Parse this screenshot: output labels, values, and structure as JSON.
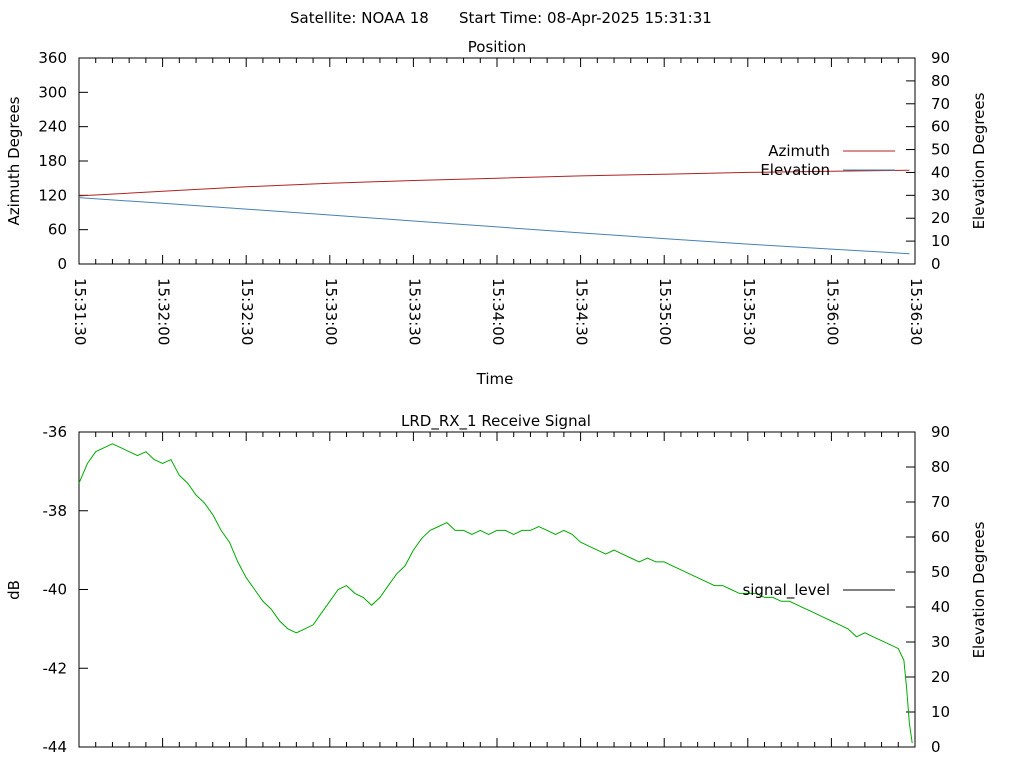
{
  "header": {
    "satellite": "Satellite: NOAA 18",
    "start_time": "Start Time: 08-Apr-2025 15:31:31"
  },
  "chart_data": [
    {
      "type": "line",
      "title": "Position",
      "xlabel": "Time",
      "ylabel": "Azimuth Degrees",
      "y2label": "Elevation Degrees",
      "x_ticks": [
        "15:31:30",
        "15:32:00",
        "15:32:30",
        "15:33:00",
        "15:33:30",
        "15:34:00",
        "15:34:30",
        "15:35:00",
        "15:35:30",
        "15:36:00",
        "15:36:30"
      ],
      "y_ticks": [
        "0",
        "60",
        "120",
        "180",
        "240",
        "300",
        "360"
      ],
      "y2_ticks": [
        "0",
        "10",
        "20",
        "30",
        "40",
        "50",
        "60",
        "70",
        "80",
        "90"
      ],
      "ylim": [
        0,
        360
      ],
      "y2lim": [
        0,
        90
      ],
      "xlim_seconds": [
        0,
        300
      ],
      "legend_position": "right",
      "grid": false,
      "series": [
        {
          "name": "Azimuth",
          "axis": "y1",
          "color": "#b22222",
          "x_seconds": [
            0,
            30,
            60,
            90,
            120,
            150,
            180,
            210,
            240,
            270,
            298
          ],
          "values": [
            119,
            127,
            135,
            141,
            146,
            150,
            154,
            157,
            160,
            162,
            164
          ]
        },
        {
          "name": "Elevation",
          "axis": "y2",
          "color": "#4682b4",
          "x_seconds": [
            0,
            30,
            60,
            90,
            120,
            150,
            180,
            210,
            240,
            270,
            298
          ],
          "values": [
            29,
            26.5,
            24,
            21.4,
            18.8,
            16.2,
            13.6,
            11.1,
            8.7,
            6.5,
            4.5
          ]
        }
      ]
    },
    {
      "type": "line",
      "title": "LRD_RX_1 Receive Signal",
      "ylabel": "dB",
      "y2label": "Elevation Degrees",
      "y_ticks": [
        "-44",
        "-42",
        "-40",
        "-38",
        "-36"
      ],
      "y2_ticks": [
        "0",
        "10",
        "20",
        "30",
        "40",
        "50",
        "60",
        "70",
        "80",
        "90"
      ],
      "ylim": [
        -44,
        -36
      ],
      "y2lim": [
        0,
        90
      ],
      "xlim_seconds": [
        0,
        300
      ],
      "legend_position": "right",
      "series": [
        {
          "name": "signal_level",
          "color": "#00aa00",
          "x_seconds": [
            0,
            3,
            6,
            9,
            12,
            15,
            18,
            21,
            24,
            27,
            30,
            33,
            36,
            39,
            42,
            45,
            48,
            51,
            54,
            57,
            60,
            63,
            66,
            69,
            72,
            75,
            78,
            81,
            84,
            87,
            90,
            93,
            96,
            99,
            102,
            105,
            108,
            111,
            114,
            117,
            120,
            123,
            126,
            129,
            132,
            135,
            138,
            141,
            144,
            147,
            150,
            153,
            156,
            159,
            162,
            165,
            168,
            171,
            174,
            177,
            180,
            183,
            186,
            189,
            192,
            195,
            198,
            201,
            204,
            207,
            210,
            213,
            216,
            219,
            222,
            225,
            228,
            231,
            234,
            237,
            240,
            243,
            246,
            249,
            252,
            255,
            258,
            261,
            264,
            267,
            270,
            273,
            276,
            279,
            282,
            285,
            288,
            291,
            294,
            296,
            297,
            298,
            299
          ],
          "values": [
            -37.3,
            -36.8,
            -36.5,
            -36.4,
            -36.3,
            -36.4,
            -36.5,
            -36.6,
            -36.5,
            -36.7,
            -36.8,
            -36.7,
            -37.1,
            -37.3,
            -37.6,
            -37.8,
            -38.1,
            -38.5,
            -38.8,
            -39.3,
            -39.7,
            -40.0,
            -40.3,
            -40.5,
            -40.8,
            -41.0,
            -41.1,
            -41.0,
            -40.9,
            -40.6,
            -40.3,
            -40.0,
            -39.9,
            -40.1,
            -40.2,
            -40.4,
            -40.2,
            -39.9,
            -39.6,
            -39.4,
            -39.0,
            -38.7,
            -38.5,
            -38.4,
            -38.3,
            -38.5,
            -38.5,
            -38.6,
            -38.5,
            -38.6,
            -38.5,
            -38.5,
            -38.6,
            -38.5,
            -38.5,
            -38.4,
            -38.5,
            -38.6,
            -38.5,
            -38.6,
            -38.8,
            -38.9,
            -39.0,
            -39.1,
            -39.0,
            -39.1,
            -39.2,
            -39.3,
            -39.2,
            -39.3,
            -39.3,
            -39.4,
            -39.5,
            -39.6,
            -39.7,
            -39.8,
            -39.9,
            -39.9,
            -40.0,
            -40.1,
            -40.1,
            -40.1,
            -40.2,
            -40.2,
            -40.3,
            -40.3,
            -40.4,
            -40.5,
            -40.6,
            -40.7,
            -40.8,
            -40.9,
            -41.0,
            -41.2,
            -41.1,
            -41.2,
            -41.3,
            -41.4,
            -41.5,
            -41.8,
            -42.5,
            -43.4,
            -43.9
          ]
        }
      ]
    }
  ]
}
